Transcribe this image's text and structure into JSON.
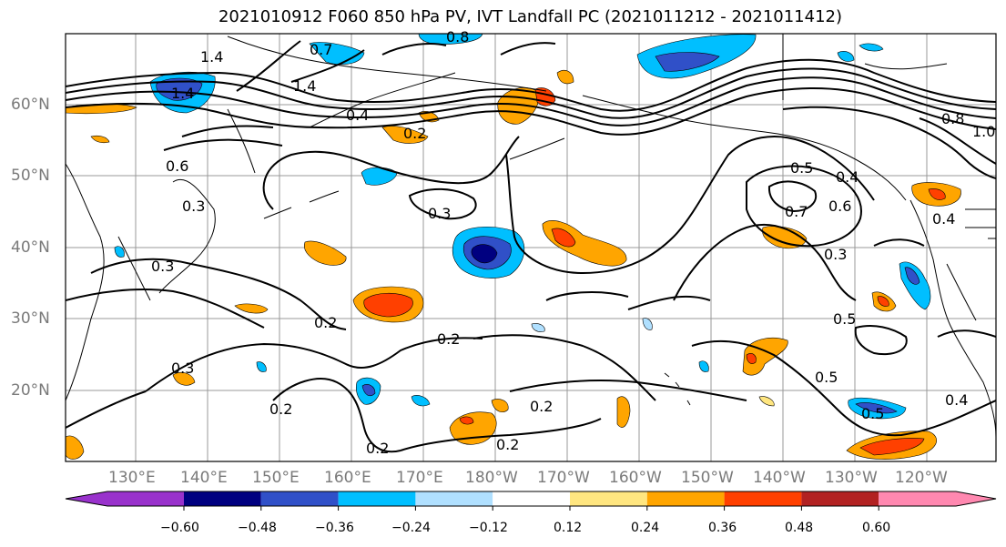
{
  "title": "2021010912 F060 850 hPa PV, IVT Landfall PC (2021011212 - 2021011412)",
  "lat_labels": [
    "60°N",
    "50°N",
    "40°N",
    "30°N",
    "20°N"
  ],
  "lon_labels": [
    "130°E",
    "140°E",
    "150°E",
    "160°E",
    "170°E",
    "180°W",
    "170°W",
    "160°W",
    "150°W",
    "140°W",
    "130°W",
    "120°W"
  ],
  "colorbar": {
    "ticks": [
      "−0.60",
      "−0.48",
      "−0.36",
      "−0.24",
      "−0.12",
      "0.12",
      "0.24",
      "0.36",
      "0.48",
      "0.60"
    ],
    "colors": [
      "#9932cc",
      "#000080",
      "#3050c8",
      "#00bfff",
      "#b0e0ff",
      "#ffffff",
      "#ffe680",
      "#ffa500",
      "#ff4000",
      "#b22222",
      "#ff88b0"
    ]
  },
  "contour_labels": [
    "1.4",
    "1.4",
    "1.4",
    "0.8",
    "0.6",
    "0.7",
    "0.4",
    "0.2",
    "0.3",
    "0.3",
    "0.3",
    "0.2",
    "0.2",
    "0.2",
    "0.2",
    "0.2",
    "0.5",
    "0.7",
    "0.6",
    "0.4",
    "0.3",
    "0.5",
    "0.5",
    "0.5",
    "0.4",
    "0.8",
    "1.0",
    "0.4",
    "0.3",
    "0.2"
  ],
  "colors": {
    "contour": "#000000",
    "grid": "#999999",
    "coast": "#000000",
    "label": "#7a7a7a"
  }
}
